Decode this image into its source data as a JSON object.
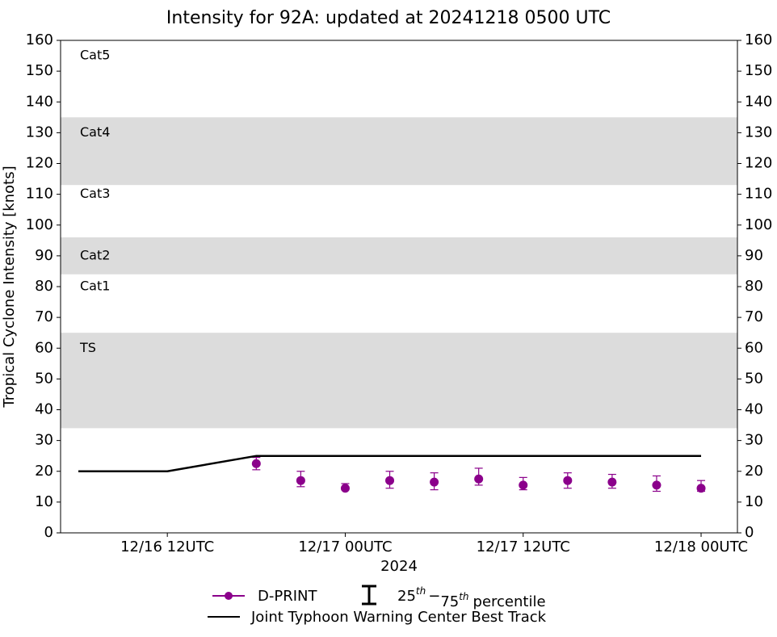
{
  "chart_data": {
    "type": "scatter",
    "title": "Intensity for 92A: updated at 20241218 0500 UTC",
    "x_label": "2024",
    "y_label": "Tropical Cyclone Intensity [knots]",
    "xlim": [
      "2024-12-16T04:48",
      "2024-12-18T02:27"
    ],
    "xticks": [
      {
        "value": "2024-12-16T12:00",
        "label": "12/16 12UTC"
      },
      {
        "value": "2024-12-17T00:00",
        "label": "12/17 00UTC"
      },
      {
        "value": "2024-12-17T12:00",
        "label": "12/17 12UTC"
      },
      {
        "value": "2024-12-18T00:00",
        "label": "12/18 00UTC"
      }
    ],
    "ylim": [
      0,
      160
    ],
    "yticks": [
      0,
      10,
      20,
      30,
      40,
      50,
      60,
      70,
      80,
      90,
      100,
      110,
      120,
      130,
      140,
      150,
      160
    ],
    "bands": [
      {
        "from": 34,
        "to": 65,
        "color": "#dcdcdc"
      },
      {
        "from": 84,
        "to": 96,
        "color": "#dcdcdc"
      },
      {
        "from": 113,
        "to": 135,
        "color": "#dcdcdc"
      }
    ],
    "category_labels": [
      {
        "label": "Cat5",
        "value": 155
      },
      {
        "label": "Cat4",
        "value": 130
      },
      {
        "label": "Cat3",
        "value": 110
      },
      {
        "label": "Cat2",
        "value": 90
      },
      {
        "label": "Cat1",
        "value": 80
      },
      {
        "label": "TS",
        "value": 60
      }
    ],
    "series": [
      {
        "name": "D-PRINT",
        "color": "#8b008b",
        "kind": "points",
        "x": [
          "2024-12-16T18:00",
          "2024-12-16T21:00",
          "2024-12-17T00:00",
          "2024-12-17T03:00",
          "2024-12-17T06:00",
          "2024-12-17T09:00",
          "2024-12-17T12:00",
          "2024-12-17T15:00",
          "2024-12-17T18:00",
          "2024-12-17T21:00",
          "2024-12-18T00:00"
        ],
        "values": [
          22.5,
          17,
          14.5,
          17,
          16.5,
          17.5,
          15.5,
          17,
          16.5,
          15.5,
          14.5
        ],
        "q25": [
          20.5,
          15,
          14,
          14.5,
          14,
          15.5,
          14,
          14.5,
          14.5,
          13.5,
          13.5
        ],
        "q75": [
          24.5,
          20,
          16,
          20,
          19.5,
          21,
          18,
          19.5,
          19,
          18.5,
          17
        ]
      },
      {
        "name": "Joint Typhoon Warning Center Best Track",
        "color": "#000000",
        "kind": "line",
        "x": [
          "2024-12-16T06:00",
          "2024-12-16T12:00",
          "2024-12-16T18:00",
          "2024-12-17T00:00",
          "2024-12-17T06:00",
          "2024-12-17T12:00",
          "2024-12-17T18:00",
          "2024-12-18T00:00"
        ],
        "values": [
          20,
          20,
          25,
          25,
          25,
          25,
          25,
          25
        ]
      }
    ],
    "errorbar_legend": {
      "low": "25",
      "low_sup": "th",
      "sep": "−",
      "high": "75",
      "high_sup": "th",
      "text": "percentile"
    }
  }
}
